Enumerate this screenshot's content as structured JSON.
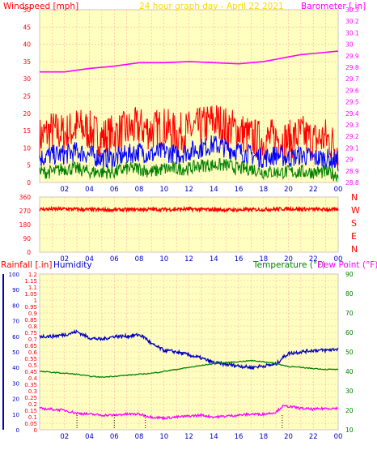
{
  "title": "24 hour graph day - April 22 2021",
  "colors": {
    "background": "#ffffff",
    "plot_bg": "#ffffc0",
    "grid": "#ffaaaa",
    "axis_left": "#ff0000",
    "axis_right": "#ff00ff",
    "title": "#ffd700",
    "wind_max": "#ff0000",
    "wind_avg": "#0000ff",
    "wind_min": "#008000",
    "barometer": "#ff00ff",
    "direction": "#ff0000",
    "humidity": "#0000c0",
    "temperature": "#008000",
    "dew_point": "#ff00ff",
    "rain_ticks": "#000000"
  },
  "panels": {
    "wind": {
      "left_label": "Windspeed [mph]",
      "right_label": "Barometer [.in]",
      "left_ticks": [
        "0",
        "5",
        "10",
        "15",
        "20",
        "25",
        "30",
        "35",
        "40",
        "45",
        "50"
      ],
      "right_ticks": [
        "28.8",
        "28.9",
        "29",
        "29.1",
        "29.2",
        "29.3",
        "29.4",
        "29.5",
        "29.6",
        "29.7",
        "29.8",
        "29.9",
        "30",
        "30.1",
        "30.2",
        "30.3"
      ]
    },
    "direction": {
      "left_ticks": [
        "0",
        "90",
        "180",
        "270",
        "360"
      ],
      "compass": [
        "N",
        "W",
        "S",
        "E",
        "N"
      ]
    },
    "lower": {
      "label_rain": "Rainfall [.in]",
      "label_humidity": "Humidity",
      "label_temp": "Temperature (°F)",
      "label_dew": "Dew Point (°F)",
      "humidity_ticks": [
        "0",
        "10",
        "20",
        "30",
        "40",
        "50",
        "60",
        "70",
        "80",
        "90",
        "100"
      ],
      "rain_ticks": [
        "0",
        "0.05",
        "0.1",
        "0.15",
        "0.2",
        "0.25",
        "0.3",
        "0.35",
        "0.4",
        "0.45",
        "0.5",
        "0.55",
        "0.6",
        "0.65",
        "0.7",
        "0.75",
        "0.8",
        "0.85",
        "0.9",
        "0.95",
        "1",
        "1.05",
        "1.1",
        "1.15",
        "1.2"
      ],
      "temp_ticks": [
        "10",
        "20",
        "30",
        "40",
        "50",
        "60",
        "70",
        "80",
        "90"
      ]
    }
  },
  "x_ticks": [
    "02",
    "04",
    "06",
    "08",
    "10",
    "12",
    "14",
    "16",
    "18",
    "20",
    "22",
    "00"
  ],
  "chart_data": [
    {
      "type": "line",
      "x_range": [
        0,
        24
      ],
      "x_ticks": [
        "02",
        "04",
        "06",
        "08",
        "10",
        "12",
        "14",
        "16",
        "18",
        "20",
        "22",
        "00"
      ],
      "ylim_left": [
        0,
        50
      ],
      "ylim_right": [
        28.8,
        30.3
      ],
      "grid": true,
      "series": [
        {
          "name": "Barometer",
          "axis": "right",
          "x": [
            0,
            2,
            4,
            6,
            8,
            10,
            12,
            14,
            16,
            17,
            18,
            19,
            20,
            21,
            22,
            23,
            24
          ],
          "values": [
            29.76,
            29.76,
            29.79,
            29.81,
            29.84,
            29.84,
            29.85,
            29.84,
            29.83,
            29.84,
            29.85,
            29.87,
            29.89,
            29.91,
            29.92,
            29.93,
            29.94
          ]
        },
        {
          "name": "Wind max",
          "axis": "left",
          "x": [
            0,
            1,
            2,
            3,
            4,
            5,
            6,
            7,
            8,
            9,
            10,
            11,
            12,
            13,
            14,
            15,
            16,
            17,
            18,
            19,
            20,
            21,
            22,
            23,
            24
          ],
          "values": [
            13,
            15,
            14,
            16,
            15,
            13,
            14,
            15,
            16,
            15,
            16,
            14,
            15,
            16,
            18,
            16,
            15,
            13,
            12,
            13,
            12,
            14,
            12,
            13,
            10
          ]
        },
        {
          "name": "Wind avg",
          "axis": "left",
          "x": [
            0,
            1,
            2,
            3,
            4,
            5,
            6,
            7,
            8,
            9,
            10,
            11,
            12,
            13,
            14,
            15,
            16,
            17,
            18,
            19,
            20,
            21,
            22,
            23,
            24
          ],
          "values": [
            7,
            8,
            8,
            9,
            8,
            7,
            7,
            8,
            9,
            8,
            9,
            8,
            9,
            10,
            11,
            10,
            9,
            8,
            7,
            8,
            7,
            8,
            7,
            7,
            6
          ]
        },
        {
          "name": "Wind min",
          "axis": "left",
          "x": [
            0,
            1,
            2,
            3,
            4,
            5,
            6,
            7,
            8,
            9,
            10,
            11,
            12,
            13,
            14,
            15,
            16,
            17,
            18,
            19,
            20,
            21,
            22,
            23,
            24
          ],
          "values": [
            3,
            3,
            4,
            4,
            3,
            3,
            3,
            4,
            4,
            3,
            4,
            4,
            4,
            5,
            5,
            5,
            4,
            4,
            3,
            3,
            3,
            3,
            3,
            3,
            2
          ]
        }
      ]
    },
    {
      "type": "line",
      "x_range": [
        0,
        24
      ],
      "ylim": [
        0,
        360
      ],
      "grid": true,
      "series": [
        {
          "name": "Wind direction",
          "x": [
            0,
            2,
            4,
            6,
            8,
            10,
            12,
            14,
            16,
            18,
            20,
            22,
            24
          ],
          "values": [
            280,
            282,
            278,
            276,
            280,
            279,
            281,
            278,
            276,
            279,
            283,
            280,
            278
          ]
        }
      ]
    },
    {
      "type": "line",
      "x_range": [
        0,
        24
      ],
      "ylim_humidity": [
        0,
        100
      ],
      "ylim_rain": [
        0,
        1.2
      ],
      "ylim_temp": [
        10,
        90
      ],
      "grid": true,
      "series": [
        {
          "name": "Humidity",
          "axis": "humidity",
          "x": [
            0,
            1,
            2,
            2.5,
            3,
            3.5,
            4,
            5,
            6,
            7,
            8,
            8.5,
            9,
            10,
            11,
            12,
            13,
            14,
            15,
            16,
            17,
            18,
            19,
            19.5,
            20,
            21,
            22,
            23,
            24
          ],
          "values": [
            60,
            60,
            61,
            62,
            63,
            61,
            59,
            58,
            60,
            60,
            61,
            59,
            55,
            51,
            50,
            48,
            46,
            43,
            42,
            41,
            40,
            41,
            42,
            46,
            49,
            50,
            51,
            51,
            52
          ]
        },
        {
          "name": "Temperature",
          "axis": "temp",
          "x": [
            0,
            1,
            2,
            3,
            4,
            5,
            6,
            7,
            8,
            9,
            10,
            11,
            12,
            13,
            14,
            15,
            16,
            17,
            18,
            19,
            20,
            21,
            22,
            23,
            24
          ],
          "values": [
            40,
            39.5,
            39,
            38.5,
            37.5,
            37,
            37.5,
            38,
            38.5,
            39,
            40,
            41,
            42,
            43,
            44,
            44.5,
            45,
            45.5,
            45,
            44,
            42.5,
            42,
            41.5,
            41,
            41
          ]
        },
        {
          "name": "Dew Point",
          "axis": "temp",
          "x": [
            0,
            1,
            2,
            3,
            4,
            5,
            6,
            7,
            8,
            9,
            10,
            11,
            12,
            13,
            14,
            15,
            16,
            17,
            18,
            19,
            19.5,
            20,
            21,
            22,
            23,
            24
          ],
          "values": [
            21,
            20.5,
            20,
            18.5,
            18,
            17.5,
            17.5,
            18,
            18,
            16.5,
            16,
            16.5,
            17,
            17.5,
            16.5,
            17,
            17.5,
            18,
            18,
            19,
            22,
            22,
            21,
            20.5,
            21,
            21
          ]
        }
      ],
      "rain_marks_x": [
        3,
        6,
        8.5,
        19.5
      ]
    }
  ]
}
